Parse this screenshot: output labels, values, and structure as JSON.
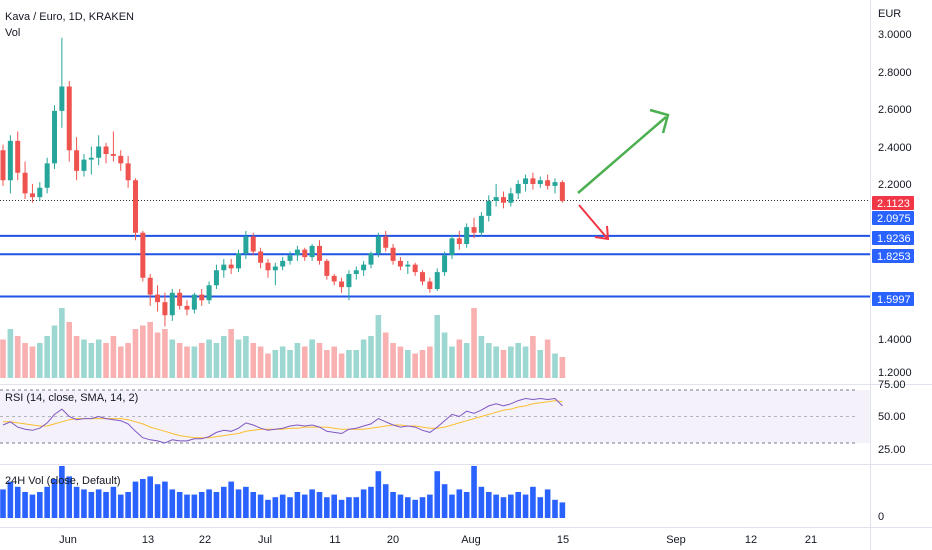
{
  "header": {
    "title": "Kava / Euro, 1D, KRAKEN",
    "vol_label": "Vol",
    "currency": "EUR"
  },
  "rsi_panel": {
    "label": "RSI (14, close, SMA, 14, 2)"
  },
  "vol24_panel": {
    "label": "24H Vol (close, Default)"
  },
  "colors": {
    "up": "#26a69a",
    "down": "#ef5350",
    "level_line": "#1e53e5",
    "badge_blue": "#2962ff",
    "badge_red": "#f23645",
    "arrow_up": "#4caf50",
    "arrow_down": "#f23645",
    "rsi_line": "#7e57c2",
    "rsi_ma": "#fbc02d",
    "vol24": "#2962ff"
  },
  "chart_data": {
    "type": "candlestick",
    "price_axis": {
      "ticks": [
        "3.0000",
        "2.8000",
        "2.6000",
        "2.4000",
        "2.2000",
        "1.4000",
        "1.2000"
      ],
      "range": [
        1.15,
        3.04
      ]
    },
    "rsi_axis": {
      "ticks": [
        "75.00",
        "50.00",
        "25.00"
      ],
      "range": [
        20,
        78
      ]
    },
    "vol24_axis": {
      "ticks": [
        "0"
      ]
    },
    "x_labels": [
      "Jun",
      "13",
      "22",
      "Jul",
      "11",
      "20",
      "Aug",
      "15",
      "Sep",
      "12",
      "21"
    ],
    "level_lines": [
      {
        "value": 2.1123,
        "label": "2.1123",
        "style": "dotted"
      },
      {
        "value": 1.9236,
        "label": "1.9236",
        "style": "solid"
      },
      {
        "value": 1.8253,
        "label": "1.8253",
        "style": "solid"
      },
      {
        "value": 1.5997,
        "label": "1.5997",
        "style": "solid"
      }
    ],
    "badges": [
      {
        "value": 2.1123,
        "label": "2.1123",
        "color": "red"
      },
      {
        "value": 2.0975,
        "label": "2.0975",
        "color": "blue"
      }
    ],
    "candles": [
      [
        2.38,
        2.41,
        2.19,
        2.22
      ],
      [
        2.22,
        2.46,
        2.15,
        2.43
      ],
      [
        2.43,
        2.48,
        2.22,
        2.26
      ],
      [
        2.26,
        2.32,
        2.12,
        2.15
      ],
      [
        2.15,
        2.2,
        2.1,
        2.13
      ],
      [
        2.13,
        2.21,
        2.11,
        2.18
      ],
      [
        2.18,
        2.34,
        2.15,
        2.31
      ],
      [
        2.31,
        2.62,
        2.28,
        2.59
      ],
      [
        2.59,
        2.98,
        2.5,
        2.72
      ],
      [
        2.72,
        2.75,
        2.32,
        2.38
      ],
      [
        2.38,
        2.45,
        2.22,
        2.27
      ],
      [
        2.27,
        2.36,
        2.24,
        2.33
      ],
      [
        2.33,
        2.4,
        2.25,
        2.34
      ],
      [
        2.34,
        2.46,
        2.3,
        2.4
      ],
      [
        2.4,
        2.42,
        2.31,
        2.36
      ],
      [
        2.36,
        2.48,
        2.32,
        2.35
      ],
      [
        2.35,
        2.38,
        2.27,
        2.31
      ],
      [
        2.31,
        2.35,
        2.18,
        2.22
      ],
      [
        2.22,
        2.23,
        1.9,
        1.94
      ],
      [
        1.94,
        1.95,
        1.68,
        1.7
      ],
      [
        1.7,
        1.72,
        1.55,
        1.61
      ],
      [
        1.61,
        1.66,
        1.52,
        1.57
      ],
      [
        1.57,
        1.62,
        1.44,
        1.5
      ],
      [
        1.5,
        1.64,
        1.47,
        1.62
      ],
      [
        1.62,
        1.64,
        1.53,
        1.55
      ],
      [
        1.55,
        1.58,
        1.5,
        1.53
      ],
      [
        1.53,
        1.62,
        1.51,
        1.61
      ],
      [
        1.61,
        1.64,
        1.55,
        1.58
      ],
      [
        1.58,
        1.68,
        1.56,
        1.66
      ],
      [
        1.66,
        1.77,
        1.64,
        1.74
      ],
      [
        1.74,
        1.8,
        1.7,
        1.77
      ],
      [
        1.77,
        1.8,
        1.72,
        1.75
      ],
      [
        1.75,
        1.85,
        1.73,
        1.83
      ],
      [
        1.83,
        1.95,
        1.8,
        1.92
      ],
      [
        1.92,
        1.94,
        1.82,
        1.84
      ],
      [
        1.84,
        1.86,
        1.75,
        1.78
      ],
      [
        1.78,
        1.8,
        1.7,
        1.74
      ],
      [
        1.74,
        1.78,
        1.66,
        1.76
      ],
      [
        1.76,
        1.81,
        1.74,
        1.79
      ],
      [
        1.79,
        1.84,
        1.77,
        1.82
      ],
      [
        1.82,
        1.87,
        1.79,
        1.85
      ],
      [
        1.85,
        1.86,
        1.79,
        1.81
      ],
      [
        1.81,
        1.88,
        1.79,
        1.87
      ],
      [
        1.87,
        1.9,
        1.77,
        1.79
      ],
      [
        1.79,
        1.8,
        1.69,
        1.71
      ],
      [
        1.71,
        1.72,
        1.66,
        1.68
      ],
      [
        1.68,
        1.7,
        1.62,
        1.65
      ],
      [
        1.65,
        1.74,
        1.58,
        1.72
      ],
      [
        1.72,
        1.76,
        1.69,
        1.74
      ],
      [
        1.74,
        1.79,
        1.71,
        1.77
      ],
      [
        1.77,
        1.84,
        1.75,
        1.83
      ],
      [
        1.83,
        1.94,
        1.81,
        1.92
      ],
      [
        1.92,
        1.95,
        1.84,
        1.86
      ],
      [
        1.86,
        1.88,
        1.77,
        1.79
      ],
      [
        1.79,
        1.81,
        1.74,
        1.76
      ],
      [
        1.76,
        1.79,
        1.72,
        1.77
      ],
      [
        1.77,
        1.78,
        1.71,
        1.73
      ],
      [
        1.73,
        1.74,
        1.66,
        1.68
      ],
      [
        1.68,
        1.7,
        1.62,
        1.64
      ],
      [
        1.64,
        1.75,
        1.63,
        1.73
      ],
      [
        1.73,
        1.84,
        1.71,
        1.82
      ],
      [
        1.82,
        1.93,
        1.8,
        1.91
      ],
      [
        1.91,
        1.95,
        1.85,
        1.88
      ],
      [
        1.88,
        1.99,
        1.86,
        1.97
      ],
      [
        1.97,
        2.02,
        1.91,
        1.94
      ],
      [
        1.94,
        2.05,
        1.92,
        2.03
      ],
      [
        2.03,
        2.14,
        2.0,
        2.11
      ],
      [
        2.11,
        2.2,
        2.08,
        2.13
      ],
      [
        2.13,
        2.16,
        2.07,
        2.1
      ],
      [
        2.1,
        2.18,
        2.08,
        2.15
      ],
      [
        2.15,
        2.22,
        2.12,
        2.2
      ],
      [
        2.2,
        2.25,
        2.16,
        2.23
      ],
      [
        2.23,
        2.26,
        2.17,
        2.2
      ],
      [
        2.2,
        2.24,
        2.18,
        2.22
      ],
      [
        2.22,
        2.25,
        2.17,
        2.19
      ],
      [
        2.19,
        2.23,
        2.15,
        2.21
      ],
      [
        2.21,
        2.22,
        2.1,
        2.11
      ]
    ],
    "volume_price_range": [
      1.15,
      1.56
    ],
    "rsi_values": [
      42,
      45,
      40,
      38,
      37,
      39,
      44,
      52,
      57,
      50,
      47,
      48,
      48,
      50,
      48,
      47,
      46,
      43,
      36,
      30,
      28,
      27,
      25,
      28,
      27,
      27,
      29,
      29,
      31,
      35,
      37,
      36,
      39,
      44,
      42,
      39,
      37,
      38,
      39,
      41,
      42,
      41,
      42,
      40,
      36,
      35,
      34,
      38,
      39,
      41,
      43,
      48,
      45,
      42,
      40,
      41,
      40,
      37,
      35,
      40,
      46,
      52,
      50,
      55,
      53,
      56,
      60,
      62,
      60,
      62,
      65,
      67,
      66,
      67,
      66,
      67,
      60
    ],
    "rsi_ma_values": [
      45,
      45,
      44,
      43,
      42,
      41,
      41,
      43,
      45,
      47,
      48,
      48,
      48,
      48,
      48,
      48,
      48,
      47,
      45,
      43,
      40,
      38,
      36,
      34,
      32,
      31,
      30,
      30,
      30,
      31,
      32,
      33,
      34,
      36,
      37,
      38,
      38,
      38,
      38,
      39,
      39,
      40,
      40,
      40,
      40,
      39,
      38,
      38,
      38,
      38,
      39,
      40,
      41,
      42,
      42,
      41,
      41,
      40,
      39,
      39,
      40,
      42,
      44,
      46,
      48,
      50,
      52,
      54,
      56,
      57,
      59,
      60,
      62,
      63,
      64,
      65,
      64
    ],
    "vol24_values": [
      0.55,
      0.7,
      0.6,
      0.5,
      0.45,
      0.5,
      0.6,
      0.75,
      1.0,
      0.8,
      0.6,
      0.55,
      0.5,
      0.55,
      0.5,
      0.6,
      0.45,
      0.5,
      0.7,
      0.75,
      0.8,
      0.65,
      0.7,
      0.55,
      0.5,
      0.45,
      0.45,
      0.5,
      0.55,
      0.5,
      0.6,
      0.7,
      0.55,
      0.6,
      0.5,
      0.45,
      0.35,
      0.4,
      0.45,
      0.4,
      0.5,
      0.45,
      0.55,
      0.5,
      0.4,
      0.45,
      0.35,
      0.4,
      0.4,
      0.55,
      0.6,
      0.9,
      0.65,
      0.5,
      0.45,
      0.4,
      0.35,
      0.4,
      0.45,
      0.9,
      0.65,
      0.45,
      0.55,
      0.5,
      1.0,
      0.6,
      0.5,
      0.45,
      0.4,
      0.45,
      0.5,
      0.45,
      0.6,
      0.4,
      0.55,
      0.35,
      0.3
    ]
  }
}
